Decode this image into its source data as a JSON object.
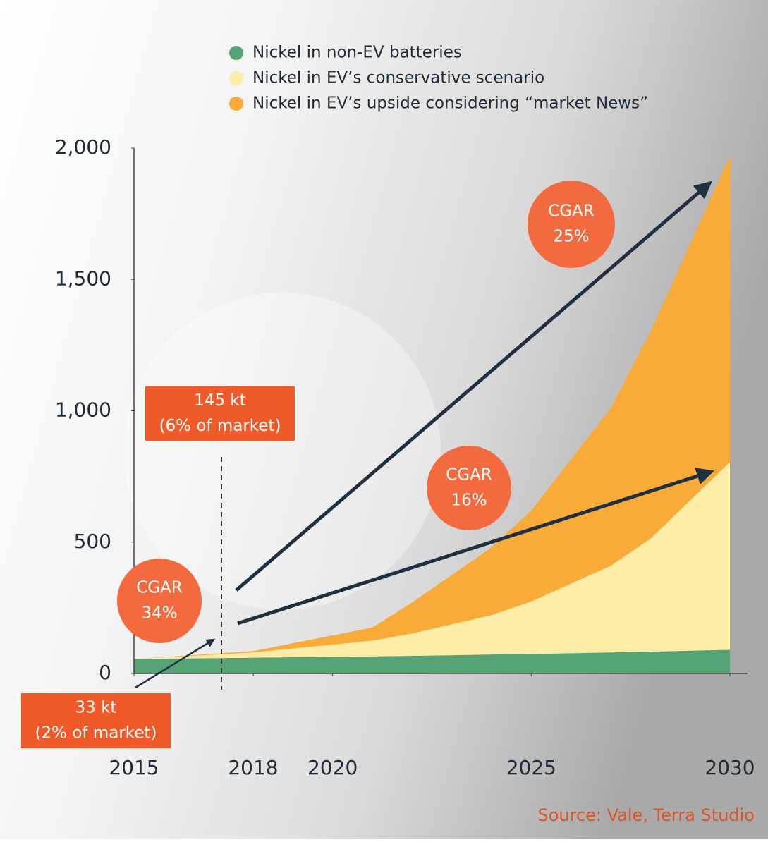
{
  "chart_data": {
    "type": "stacked-area",
    "x": [
      2015,
      2018,
      2021,
      2022,
      2024,
      2025,
      2027,
      2028,
      2030
    ],
    "series": [
      {
        "name": "Nickel in non-EV batteries",
        "color": "#55a274",
        "values": [
          55,
          60,
          65,
          67,
          72,
          74,
          80,
          83,
          90
        ]
      },
      {
        "name": "Nickel in EV’s conservative scenario",
        "color": "#fdeca6",
        "values": [
          0,
          20,
          60,
          85,
          150,
          200,
          330,
          430,
          715
        ]
      },
      {
        "name": "Nickel in EV’s upside considering “market News”",
        "color": "#f8ab38",
        "values": [
          0,
          5,
          50,
          118,
          258,
          346,
          600,
          787,
          1165
        ]
      }
    ],
    "xlim": [
      2015,
      2030
    ],
    "xticks": [
      2015,
      2018,
      2020,
      2025,
      2030
    ],
    "ylim": [
      0,
      2000
    ],
    "yticks": [
      0,
      500,
      {
        "value": 1000,
        "label": "1,000"
      },
      {
        "value": 1500,
        "label": "1,500"
      },
      {
        "value": 2000,
        "label": "2,000"
      }
    ],
    "annotations": [
      {
        "lines": [
          "145 kt",
          "(6% of market)"
        ]
      },
      {
        "lines": [
          "33 kt",
          "(2% of market)"
        ]
      },
      {
        "lines": [
          "CGAR",
          "34%"
        ]
      },
      {
        "lines": [
          "CGAR",
          "25%"
        ]
      },
      {
        "lines": [
          "CGAR",
          "16%"
        ]
      }
    ],
    "source": "Source: Vale, Terra Studio"
  }
}
